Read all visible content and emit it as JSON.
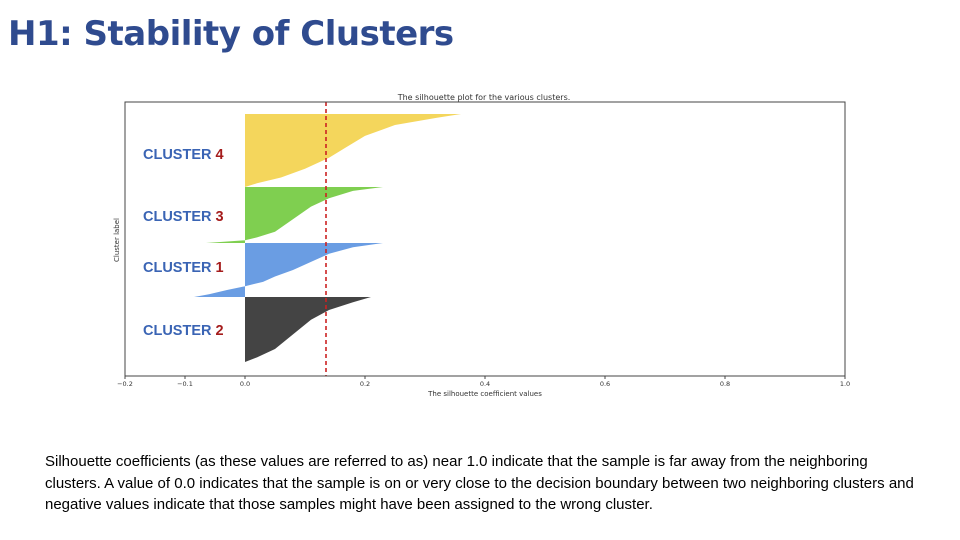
{
  "slide": {
    "title": "H1: Stability of Clusters",
    "caption": "Silhouette coefficients (as these values are referred to as) near 1.0 indicate that the sample is far away from the neighboring clusters. A value of 0.0 indicates that the sample is on or very close to the decision boundary between two neighboring clusters and negative values indicate that those samples might have been assigned to the wrong cluster."
  },
  "colors": {
    "title": "#2f4b8f",
    "label_word": "#3a64b4",
    "label_number": "#a51c1c",
    "average_line": "#cc2222"
  },
  "chart_data": {
    "type": "area",
    "title": "The silhouette plot for the various clusters.",
    "xlabel": "The silhouette coefficient values",
    "ylabel": "Cluster label",
    "xlim": [
      -0.2,
      1.0
    ],
    "xticks": [
      -0.2,
      -0.1,
      0.0,
      0.2,
      0.4,
      0.6,
      0.8,
      1.0
    ],
    "xtick_labels": [
      "−0.2",
      "−0.1",
      "0.0",
      "0.2",
      "0.4",
      "0.6",
      "0.8",
      "1.0"
    ],
    "grid": false,
    "average_silhouette": 0.135,
    "series": [
      {
        "name": "CLUSTER 2",
        "label_word": "CLUSTER",
        "label_number": "2",
        "color": "#444444",
        "max": 0.21,
        "min": 0.0,
        "profile": [
          [
            0,
            0.21
          ],
          [
            0.08,
            0.18
          ],
          [
            0.2,
            0.14
          ],
          [
            0.35,
            0.11
          ],
          [
            0.5,
            0.09
          ],
          [
            0.65,
            0.07
          ],
          [
            0.8,
            0.05
          ],
          [
            0.93,
            0.02
          ],
          [
            1,
            0.0
          ]
        ]
      },
      {
        "name": "CLUSTER 1",
        "label_word": "CLUSTER",
        "label_number": "1",
        "color": "#6a9de3",
        "max": 0.23,
        "min": -0.085,
        "profile": [
          [
            0,
            0.23
          ],
          [
            0.08,
            0.18
          ],
          [
            0.2,
            0.14
          ],
          [
            0.35,
            0.11
          ],
          [
            0.5,
            0.08
          ],
          [
            0.62,
            0.05
          ],
          [
            0.72,
            0.03
          ],
          [
            0.8,
            0.0
          ],
          [
            0.87,
            -0.03
          ],
          [
            0.95,
            -0.06
          ],
          [
            1,
            -0.085
          ]
        ]
      },
      {
        "name": "CLUSTER 3",
        "label_word": "CLUSTER",
        "label_number": "3",
        "color": "#7fcf50",
        "max": 0.23,
        "min": -0.065,
        "profile": [
          [
            0,
            0.23
          ],
          [
            0.07,
            0.18
          ],
          [
            0.2,
            0.14
          ],
          [
            0.35,
            0.11
          ],
          [
            0.5,
            0.09
          ],
          [
            0.65,
            0.07
          ],
          [
            0.8,
            0.05
          ],
          [
            0.9,
            0.02
          ],
          [
            0.95,
            0.0
          ],
          [
            1,
            -0.065
          ]
        ]
      },
      {
        "name": "CLUSTER 4",
        "label_word": "CLUSTER",
        "label_number": "4",
        "color": "#f4d65c",
        "max": 0.36,
        "min": 0.0,
        "profile": [
          [
            0,
            0.36
          ],
          [
            0.05,
            0.32
          ],
          [
            0.15,
            0.25
          ],
          [
            0.3,
            0.2
          ],
          [
            0.45,
            0.17
          ],
          [
            0.6,
            0.14
          ],
          [
            0.75,
            0.1
          ],
          [
            0.87,
            0.06
          ],
          [
            0.95,
            0.02
          ],
          [
            1,
            0.0
          ]
        ]
      }
    ]
  }
}
